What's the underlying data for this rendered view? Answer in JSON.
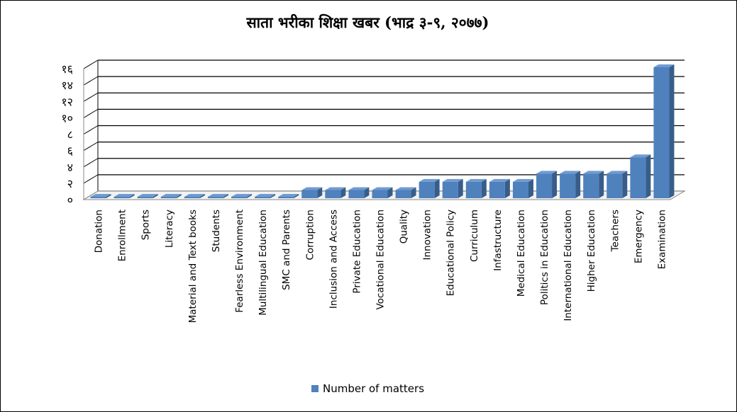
{
  "chart_data": {
    "type": "bar",
    "title": "साता भरीका शिक्षा  खबर (भाद्र ३-९, २०७७)",
    "categories": [
      "Donation",
      "Enrollment",
      "Sports",
      "Literacy",
      "Material and Text books",
      "Students",
      "Fearless Environment",
      "Multilingual Education",
      "SMC and Parents",
      "Corruption",
      "Inclusion and Access",
      "Private Education",
      "Vocational Education",
      "Quality",
      "Innovation",
      "Educational Policy",
      "Curriculum",
      "Infastructure",
      "Medical Education",
      "Politics in Education",
      "International Education",
      "Higher Education",
      "Teachers",
      "Emergency",
      "Examination"
    ],
    "series": [
      {
        "name": "Number of matters",
        "values": [
          0,
          0,
          0,
          0,
          0,
          0,
          0,
          0,
          0,
          1,
          1,
          1,
          1,
          1,
          2,
          2,
          2,
          2,
          2,
          3,
          3,
          3,
          3,
          5,
          16
        ]
      }
    ],
    "y_tick_labels": [
      "०",
      "२",
      "४",
      "६",
      "८",
      "१०",
      "१२",
      "१४",
      "१६"
    ],
    "y_ticks": [
      0,
      2,
      4,
      6,
      8,
      10,
      12,
      14,
      16
    ],
    "ylim": [
      0,
      16
    ],
    "xlabel": "",
    "ylabel": "",
    "grid": true,
    "legend_position": "bottom",
    "bar_color": "#4f81bd",
    "bar_side_color": "#385d8a",
    "bar_top_color": "#6f9bd1"
  }
}
